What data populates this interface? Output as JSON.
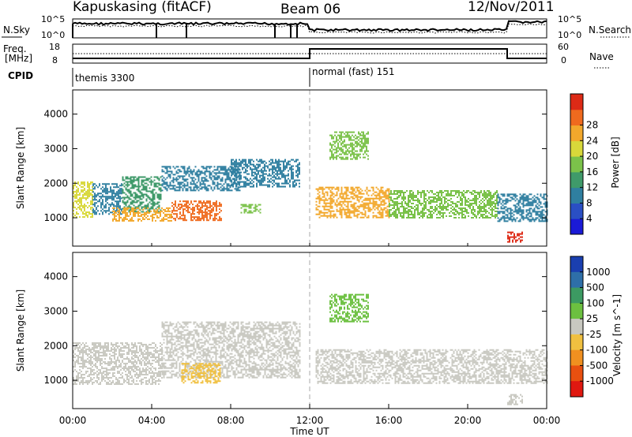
{
  "header": {
    "station": "Kapuskasing (fitACF)",
    "beam": "Beam 06",
    "date": "12/Nov/2011"
  },
  "strip_panels": {
    "nsky_label": "N.Sky",
    "nsearch_label": "N.Search",
    "nsky_ticks": [
      "10^5",
      "10^0"
    ],
    "nsearch_ticks": [
      "10^5",
      "10^0"
    ],
    "freq_label": "Freq.",
    "freq_unit": "[MHz]",
    "freq_ticks": [
      "18",
      "8"
    ],
    "nave_label": "Nave",
    "nave_ticks": [
      "60",
      "0"
    ],
    "cpid_label": "CPID",
    "cpid_modes": [
      {
        "name": "themis 3300",
        "start_hour": 0,
        "end_hour": 12
      },
      {
        "name": "normal (fast) 151",
        "start_hour": 12,
        "end_hour": 24
      }
    ]
  },
  "chart_data": [
    {
      "type": "heatmap",
      "title": "",
      "quantity": "Power",
      "ylabel": "Slant Range [km]",
      "xlabel": "",
      "x_range_hours": [
        0,
        24
      ],
      "ylim": [
        180,
        4700
      ],
      "y_ticks": [
        1000,
        2000,
        3000,
        4000
      ],
      "colorbar": {
        "label": "Power [dB]",
        "ticks": [
          "4",
          "8",
          "12",
          "16",
          "20",
          "24",
          "28"
        ],
        "range": [
          0,
          30
        ],
        "colors": [
          "#1a1ad6",
          "#2a4fc4",
          "#2f7fa0",
          "#3f9a6a",
          "#7bc24a",
          "#d8d83a",
          "#f2a82c",
          "#ef6a1e",
          "#dd2a16"
        ]
      },
      "regions": [
        {
          "start_hour": 0.0,
          "end_hour": 1.0,
          "min_km": 1000,
          "max_km": 2050,
          "power_db": 18
        },
        {
          "start_hour": 1.0,
          "end_hour": 2.5,
          "min_km": 1100,
          "max_km": 2000,
          "power_db": 8
        },
        {
          "start_hour": 2.5,
          "end_hour": 4.5,
          "min_km": 1150,
          "max_km": 2200,
          "power_db": 10
        },
        {
          "start_hour": 2.0,
          "end_hour": 5.0,
          "min_km": 900,
          "max_km": 1300,
          "power_db": 22
        },
        {
          "start_hour": 5.0,
          "end_hour": 7.5,
          "min_km": 950,
          "max_km": 1500,
          "power_db": 24
        },
        {
          "start_hour": 4.5,
          "end_hour": 8.5,
          "min_km": 1800,
          "max_km": 2500,
          "power_db": 8
        },
        {
          "start_hour": 8.0,
          "end_hour": 11.5,
          "min_km": 1900,
          "max_km": 2700,
          "power_db": 7
        },
        {
          "start_hour": 8.5,
          "end_hour": 9.5,
          "min_km": 1150,
          "max_km": 1400,
          "power_db": 14
        },
        {
          "start_hour": 12.3,
          "end_hour": 16.0,
          "min_km": 1000,
          "max_km": 1900,
          "power_db": 20
        },
        {
          "start_hour": 16.0,
          "end_hour": 21.5,
          "min_km": 1000,
          "max_km": 1800,
          "power_db": 16
        },
        {
          "start_hour": 21.5,
          "end_hour": 24.0,
          "min_km": 900,
          "max_km": 1700,
          "power_db": 8
        },
        {
          "start_hour": 13.0,
          "end_hour": 15.0,
          "min_km": 2700,
          "max_km": 3500,
          "power_db": 14
        },
        {
          "start_hour": 22.0,
          "end_hour": 22.8,
          "min_km": 300,
          "max_km": 600,
          "power_db": 28
        }
      ]
    },
    {
      "type": "heatmap",
      "title": "",
      "quantity": "Velocity",
      "ylabel": "Slant Range [km]",
      "xlabel": "Time UT",
      "x_range_hours": [
        0,
        24
      ],
      "x_ticks": [
        "00:00",
        "04:00",
        "08:00",
        "12:00",
        "16:00",
        "20:00",
        "00:00"
      ],
      "ylim": [
        180,
        4700
      ],
      "y_ticks": [
        1000,
        2000,
        3000,
        4000
      ],
      "colorbar": {
        "label": "Velocity [m s^-1]",
        "ticks": [
          "1000",
          "500",
          "100",
          "25",
          "-25",
          "-100",
          "-500",
          "-1000"
        ],
        "range": [
          -1000,
          1000
        ],
        "colors": [
          "#1a3fb0",
          "#2e6fa8",
          "#3c9a62",
          "#6cc040",
          "#c8c8c0",
          "#f0c040",
          "#f09020",
          "#e85010",
          "#e01810"
        ]
      },
      "regions": [
        {
          "start_hour": 0.0,
          "end_hour": 4.5,
          "min_km": 900,
          "max_km": 2100,
          "velocity": 0
        },
        {
          "start_hour": 4.5,
          "end_hour": 11.5,
          "min_km": 1100,
          "max_km": 2700,
          "velocity": 0
        },
        {
          "start_hour": 5.5,
          "end_hour": 7.5,
          "min_km": 950,
          "max_km": 1500,
          "velocity": -150
        },
        {
          "start_hour": 12.3,
          "end_hour": 24.0,
          "min_km": 900,
          "max_km": 1900,
          "velocity": 0
        },
        {
          "start_hour": 13.0,
          "end_hour": 15.0,
          "min_km": 2700,
          "max_km": 3500,
          "velocity": 300
        },
        {
          "start_hour": 22.0,
          "end_hour": 22.8,
          "min_km": 300,
          "max_km": 600,
          "velocity": 0
        }
      ]
    }
  ]
}
